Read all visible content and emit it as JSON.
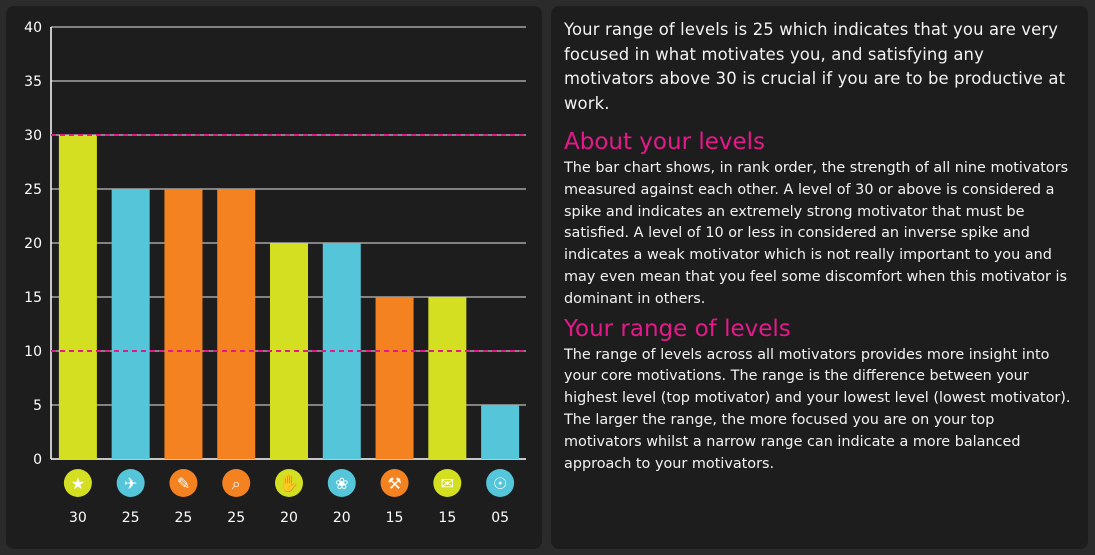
{
  "chart_data": {
    "type": "bar",
    "ylim": [
      0,
      40
    ],
    "yticks": [
      0,
      5,
      10,
      15,
      20,
      25,
      30,
      35,
      40
    ],
    "grid": true,
    "reference_lines": [
      30,
      10
    ],
    "reference_color": "#e5198a",
    "values": [
      30,
      25,
      25,
      25,
      20,
      20,
      15,
      15,
      5
    ],
    "value_labels": [
      "30",
      "25",
      "25",
      "25",
      "20",
      "20",
      "15",
      "15",
      "05"
    ],
    "colors": [
      "#d4df22",
      "#55c5d9",
      "#f58220",
      "#f58220",
      "#d4df22",
      "#55c5d9",
      "#f58220",
      "#d4df22",
      "#55c5d9"
    ],
    "icons": [
      "star-icon",
      "bird-icon",
      "pencil-icon",
      "magnifier-icon",
      "hand-icon",
      "palette-icon",
      "trowel-icon",
      "envelope-icon",
      "compass-icon"
    ]
  },
  "text": {
    "intro": "Your range of levels is 25 which indicates that you are very focused in what motivates you, and satisfying any motivators above 30 is crucial if you are to be productive at work.",
    "about_heading": "About your levels",
    "about_body": "The bar chart shows, in rank order, the strength of all nine motivators measured against each other. A level of 30 or above is considered a spike and indicates an extremely strong motivator that must be satisfied. A level of 10 or less in considered an inverse spike and indicates a weak motivator which is not really important to you and may even mean that you feel some discomfort when this motivator is dominant in others.",
    "range_heading": "Your range of levels",
    "range_body": "The range of levels across all motivators provides more insight into your core motivations. The range is the difference between your highest level (top motivator) and your lowest level (lowest motivator). The larger the range, the more focused you are on your top motivators whilst a narrow range can indicate a more balanced approach to your motivators."
  }
}
